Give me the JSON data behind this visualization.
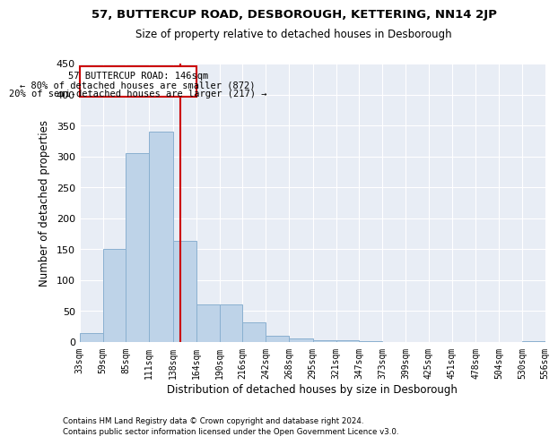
{
  "title1": "57, BUTTERCUP ROAD, DESBOROUGH, KETTERING, NN14 2JP",
  "title2": "Size of property relative to detached houses in Desborough",
  "xlabel": "Distribution of detached houses by size in Desborough",
  "ylabel": "Number of detached properties",
  "footnote1": "Contains HM Land Registry data © Crown copyright and database right 2024.",
  "footnote2": "Contains public sector information licensed under the Open Government Licence v3.0.",
  "bar_color": "#bed3e8",
  "bar_edge_color": "#8ab0d0",
  "background_color": "#e8edf5",
  "grid_color": "#ffffff",
  "vline_x": 146,
  "vline_color": "#cc0000",
  "annotation_line1": "57 BUTTERCUP ROAD: 146sqm",
  "annotation_line2": "← 80% of detached houses are smaller (872)",
  "annotation_line3": "20% of semi-detached houses are larger (217) →",
  "box_color": "#cc0000",
  "bins": [
    33,
    59,
    85,
    111,
    138,
    164,
    190,
    216,
    242,
    268,
    295,
    321,
    347,
    373,
    399,
    425,
    451,
    478,
    504,
    530,
    556
  ],
  "bin_labels": [
    "33sqm",
    "59sqm",
    "85sqm",
    "111sqm",
    "138sqm",
    "164sqm",
    "190sqm",
    "216sqm",
    "242sqm",
    "268sqm",
    "295sqm",
    "321sqm",
    "347sqm",
    "373sqm",
    "399sqm",
    "425sqm",
    "451sqm",
    "478sqm",
    "504sqm",
    "530sqm",
    "556sqm"
  ],
  "counts": [
    15,
    150,
    305,
    340,
    163,
    60,
    60,
    32,
    10,
    5,
    3,
    3,
    2,
    0,
    0,
    0,
    0,
    0,
    0,
    2
  ],
  "ylim": [
    0,
    450
  ],
  "yticks": [
    0,
    50,
    100,
    150,
    200,
    250,
    300,
    350,
    400,
    450
  ]
}
